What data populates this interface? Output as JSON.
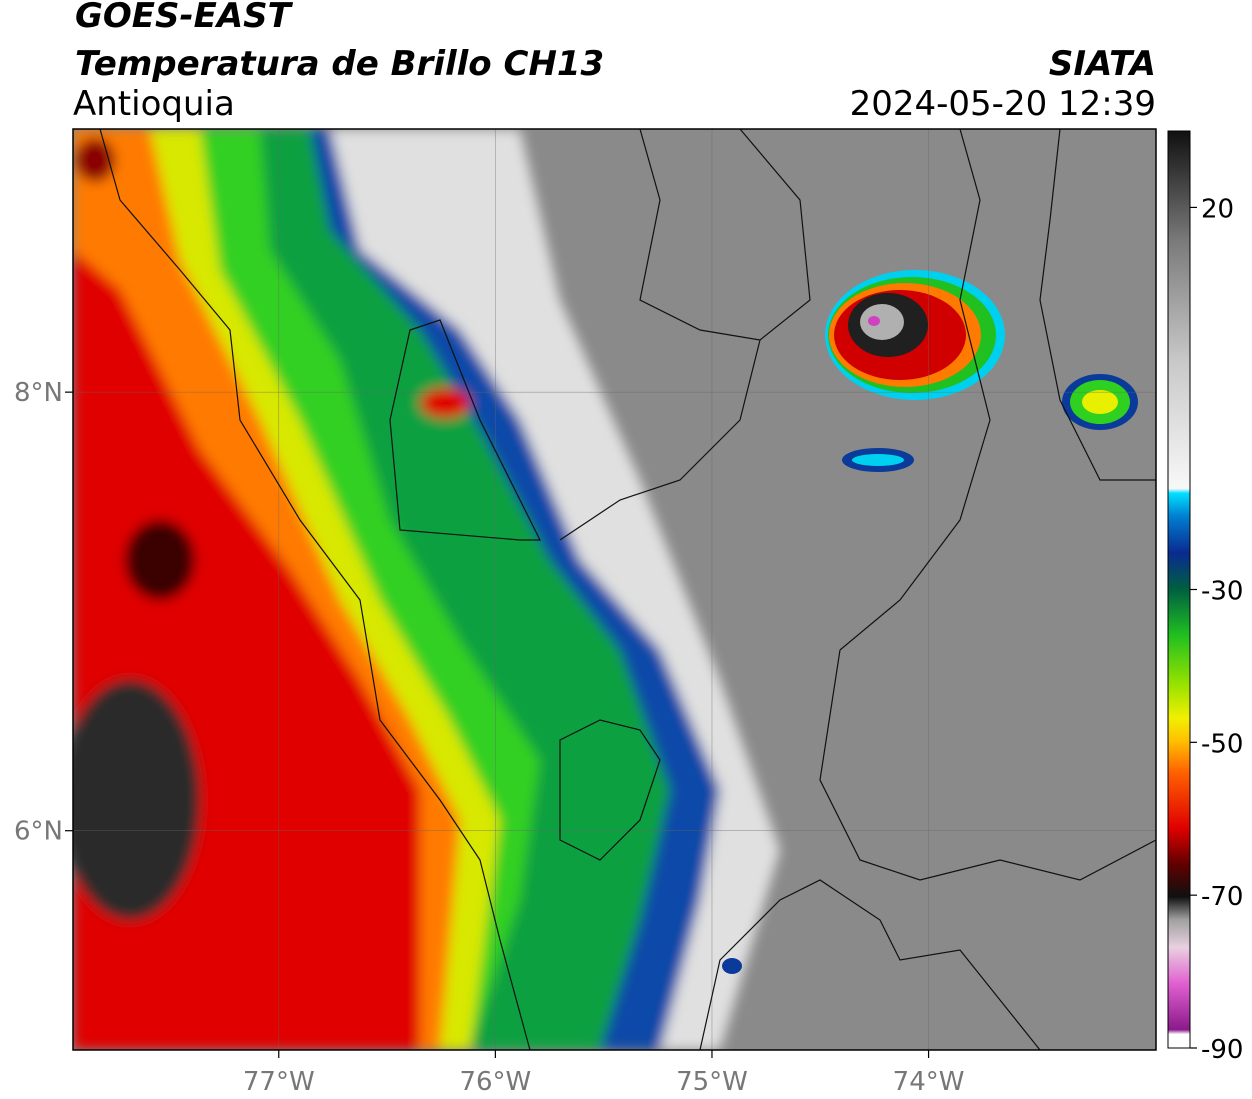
{
  "header": {
    "line1": "GOES-EAST",
    "line2": "Temperatura de Brillo CH13",
    "region": "Antioquia",
    "org": "SIATA",
    "datetime": "2024-05-20 12:39"
  },
  "map": {
    "lon_range": [
      -77.95,
      -72.95
    ],
    "lat_range": [
      5.0,
      9.2
    ],
    "lon_ticks": [
      {
        "value": -77,
        "label": "77°W"
      },
      {
        "value": -76,
        "label": "76°W"
      },
      {
        "value": -75,
        "label": "75°W"
      },
      {
        "value": -74,
        "label": "74°W"
      }
    ],
    "lat_ticks": [
      {
        "value": 8,
        "label": "8°N"
      },
      {
        "value": 6,
        "label": "6°N"
      }
    ],
    "colors": {
      "warm_gray": "#7a7a7a",
      "light": "#e8e8e8",
      "cyan": "#00d8f0",
      "blue": "#0a3a9a",
      "green": "#18c818",
      "yellow": "#e8f000",
      "orange": "#ff7a00",
      "red": "#e00000",
      "dark": "#181818",
      "magenta": "#d040c0"
    }
  },
  "colorbar": {
    "vmin": -90,
    "vmax": 30,
    "ticks": [
      {
        "value": 20,
        "label": "20"
      },
      {
        "value": -30,
        "label": "-30"
      },
      {
        "value": -50,
        "label": "-50"
      },
      {
        "value": -70,
        "label": "-70"
      },
      {
        "value": -90,
        "label": "-90"
      }
    ]
  }
}
